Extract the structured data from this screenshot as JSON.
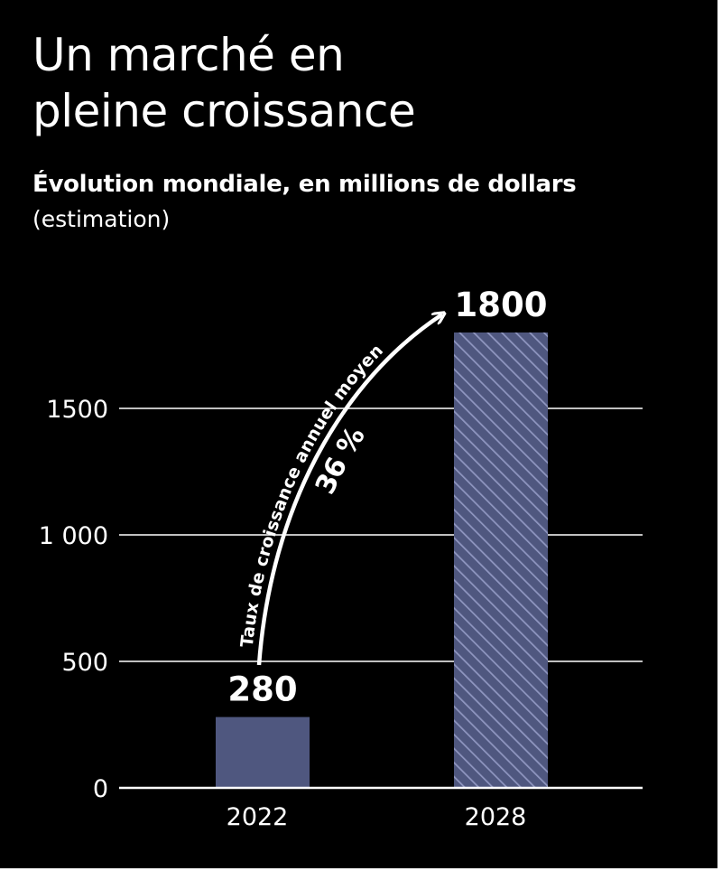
{
  "chart_data": {
    "type": "bar",
    "title_lines": [
      "Un marché en",
      "pleine croissance"
    ],
    "subtitle": "Évolution mondiale, en millions de dollars",
    "note": "(estimation)",
    "categories": [
      "2022",
      "2028"
    ],
    "values": [
      280,
      1800
    ],
    "data_labels": [
      "280",
      "1800"
    ],
    "ylim": [
      0,
      1800
    ],
    "yticks": [
      0,
      500,
      1000,
      1500
    ],
    "ytick_labels": [
      "0",
      "500",
      "1 000",
      "1500"
    ],
    "grid": true,
    "bar_colors": [
      "#4f577f",
      "#4f577f"
    ],
    "bar_patterns": [
      "solid",
      "hatched"
    ],
    "annotation": {
      "rate_label": "Taux de croissance annuel moyen",
      "rate_value": "36 %"
    }
  },
  "colors": {
    "background": "#000000",
    "text": "#ffffff",
    "bar": "#4f577f",
    "hatch_line": "#8f96c0"
  }
}
